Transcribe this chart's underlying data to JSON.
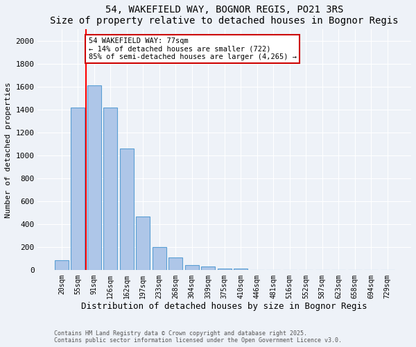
{
  "title": "54, WAKEFIELD WAY, BOGNOR REGIS, PO21 3RS",
  "subtitle": "Size of property relative to detached houses in Bognor Regis",
  "xlabel": "Distribution of detached houses by size in Bognor Regis",
  "ylabel": "Number of detached properties",
  "categories": [
    "20sqm",
    "55sqm",
    "91sqm",
    "126sqm",
    "162sqm",
    "197sqm",
    "233sqm",
    "268sqm",
    "304sqm",
    "339sqm",
    "375sqm",
    "410sqm",
    "446sqm",
    "481sqm",
    "516sqm",
    "552sqm",
    "587sqm",
    "623sqm",
    "658sqm",
    "694sqm",
    "729sqm"
  ],
  "values": [
    85,
    1420,
    1610,
    1420,
    1060,
    470,
    205,
    110,
    45,
    35,
    15,
    15,
    5,
    2,
    2,
    1,
    1,
    0,
    0,
    0,
    0
  ],
  "bar_color": "#aec6e8",
  "bar_edge_color": "#5a9fd4",
  "red_line_x": 1.5,
  "annotation_title": "54 WAKEFIELD WAY: 77sqm",
  "annotation_line1": "← 14% of detached houses are smaller (722)",
  "annotation_line2": "85% of semi-detached houses are larger (4,265) →",
  "annotation_box_color": "#ffffff",
  "annotation_box_edge": "#cc0000",
  "footer_line1": "Contains HM Land Registry data © Crown copyright and database right 2025.",
  "footer_line2": "Contains public sector information licensed under the Open Government Licence v3.0.",
  "ylim": [
    0,
    2100
  ],
  "yticks": [
    0,
    200,
    400,
    600,
    800,
    1000,
    1200,
    1400,
    1600,
    1800,
    2000
  ],
  "background_color": "#eef2f8"
}
